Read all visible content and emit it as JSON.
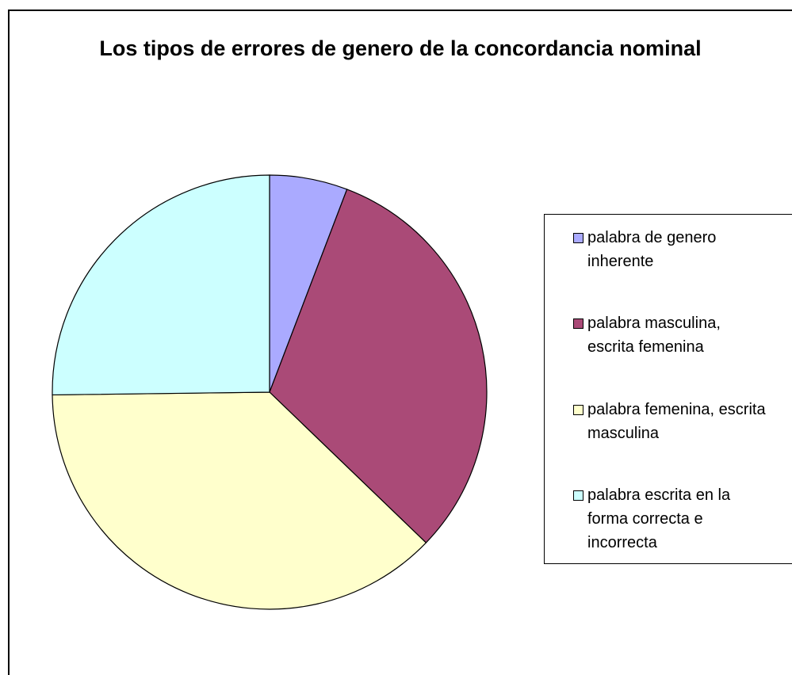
{
  "chart_data": {
    "type": "pie",
    "title": "Los tipos de errores de genero de la concordancia nominal",
    "categories": [
      "palabra de genero inherente",
      "palabra masculina, escrita femenina",
      "palabra femenina, escrita masculina",
      "palabra escrita en la forma correcta e incorrecta"
    ],
    "values": [
      5.8,
      31.4,
      37.6,
      25.2
    ],
    "colors": [
      "#aaaaff",
      "#aa4a77",
      "#ffffcc",
      "#ccffff"
    ],
    "legend": "right"
  }
}
